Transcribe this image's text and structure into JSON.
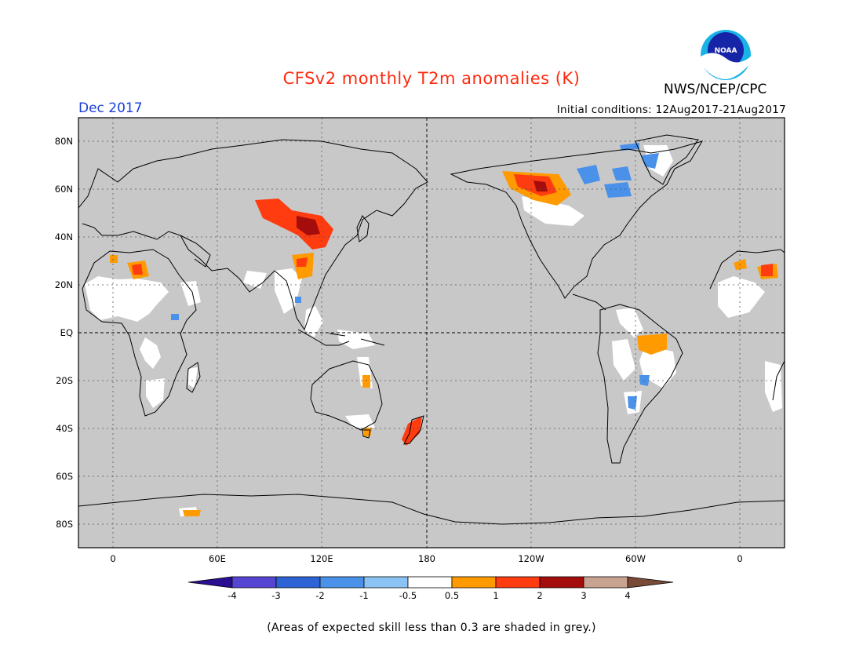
{
  "title": "CFSv2 monthly T2m anomalies (K)",
  "org": "NWS/NCEP/CPC",
  "logo_text": "NOAA",
  "month": "Dec 2017",
  "initial_conditions": "Initial conditions: 12Aug2017-21Aug2017",
  "footnote": "(Areas of expected skill less than 0.3 are shaded in grey.)",
  "lat_labels": [
    "80N",
    "60N",
    "40N",
    "20N",
    "EQ",
    "20S",
    "40S",
    "60S",
    "80S"
  ],
  "lat_values": [
    80,
    60,
    40,
    20,
    0,
    -20,
    -40,
    -60,
    -80
  ],
  "lon_labels": [
    "0",
    "60E",
    "120E",
    "180",
    "120W",
    "60W",
    "0"
  ],
  "lon_values": [
    0,
    60,
    120,
    180,
    240,
    300,
    360
  ],
  "colorbar": {
    "tick_labels": [
      "-4",
      "-3",
      "-2",
      "-1",
      "-0.5",
      "0.5",
      "1",
      "2",
      "3",
      "4"
    ],
    "colors": [
      "#2a0f93",
      "#5645d3",
      "#2e63d6",
      "#4a91ea",
      "#8cc3f5",
      "#ffffff",
      "#ff9a00",
      "#ff3b10",
      "#a50c0c",
      "#c9a392",
      "#7a4a38"
    ]
  },
  "colors": {
    "skill_grey": "#c8c8c8",
    "title_red": "#ff2a10",
    "month_blue": "#1a3fd8"
  }
}
